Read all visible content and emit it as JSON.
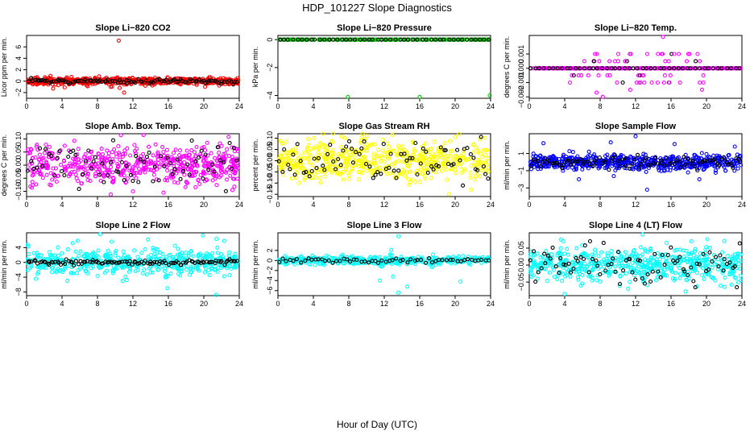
{
  "main_title": "HDP_101227  Slope Diagnostics",
  "xlabel": "Hour of Day (UTC)",
  "chart_data": [
    {
      "type": "scatter",
      "title": "Slope Li−820 CO2",
      "ylabel": "Licor ppm per min.",
      "color": "#ff0000",
      "xlim": [
        0,
        24
      ],
      "ylim": [
        -3,
        8
      ],
      "xticks": [
        0,
        4,
        8,
        12,
        16,
        20,
        24
      ],
      "xticklabels": [
        "0",
        "4",
        "8",
        "12",
        "16",
        "20",
        "24"
      ],
      "yticks": [
        -2,
        0,
        2,
        4,
        6
      ],
      "yticklabels": [
        "−2",
        "0",
        "2",
        "4",
        "6"
      ],
      "n_points": 600,
      "center": 0,
      "spread": 0.28,
      "black_n": 100,
      "black_spread": 0.2,
      "outliers": [
        [
          10.4,
          7.1
        ],
        [
          10.5,
          -1.2
        ],
        [
          11.0,
          -2.0
        ],
        [
          3.0,
          -1.3
        ],
        [
          4.3,
          -1.1
        ],
        [
          9.5,
          -1.0
        ],
        [
          13.4,
          -0.8
        ],
        [
          6.9,
          -0.9
        ]
      ]
    },
    {
      "type": "scatter",
      "title": "Slope Li−820 Pressure",
      "ylabel": "kPa per min.",
      "color": "#00cc00",
      "xlim": [
        0,
        24
      ],
      "ylim": [
        -4.2,
        0.3
      ],
      "xticks": [
        0,
        4,
        8,
        12,
        16,
        20,
        24
      ],
      "xticklabels": [
        "0",
        "4",
        "8",
        "12",
        "16",
        "20",
        "24"
      ],
      "yticks": [
        -4,
        -2,
        0
      ],
      "yticklabels": [
        "−4",
        "−2",
        "0"
      ],
      "n_points": 290,
      "center": 0,
      "spread": 0,
      "black_n": 48,
      "black_spread": 0,
      "outliers": [
        [
          7.9,
          -4.1
        ],
        [
          16.0,
          -4.1
        ],
        [
          23.9,
          -4.0
        ]
      ]
    },
    {
      "type": "scatter",
      "title": "Slope Li−820 Temp.",
      "ylabel": "degrees C per min.",
      "color": "#ff00ff",
      "xlim": [
        0,
        24
      ],
      "ylim": [
        -0.0021,
        0.0023
      ],
      "xticks": [
        0,
        4,
        8,
        12,
        16,
        20,
        24
      ],
      "xticklabels": [
        "0",
        "4",
        "8",
        "12",
        "16",
        "20",
        "24"
      ],
      "yticks": [
        -0.002,
        -0.001,
        0,
        0.001
      ],
      "yticklabels": [
        "−0.002",
        "−0.001",
        "0.000",
        "0.001"
      ],
      "n_points": 290,
      "center": 0,
      "spread": 0,
      "black_n": 48,
      "black_spread": 0,
      "levels": [
        0.001,
        0.0005,
        -0.0005,
        -0.001
      ],
      "level_xrange": [
        4.5,
        20
      ],
      "level_n": 60,
      "outliers": [
        [
          15.1,
          0.0022
        ],
        [
          11.4,
          -0.0015
        ],
        [
          8.3,
          -0.002
        ],
        [
          7.6,
          -0.0017
        ],
        [
          19.5,
          -0.0015
        ]
      ]
    },
    {
      "type": "scatter",
      "title": "Slope Amb. Box Temp.",
      "ylabel": "degrees C per min.",
      "color": "#ff00ff",
      "xlim": [
        0,
        24
      ],
      "ylim": [
        -0.12,
        0.12
      ],
      "xticks": [
        0,
        4,
        8,
        12,
        16,
        20,
        24
      ],
      "xticklabels": [
        "0",
        "4",
        "8",
        "12",
        "16",
        "20",
        "24"
      ],
      "yticks": [
        -0.1,
        -0.05,
        0,
        0.05,
        0.1
      ],
      "yticklabels": [
        "−0.10",
        "−0.05",
        "0.00",
        "0.05",
        "0.10"
      ],
      "n_points": 560,
      "center": 0,
      "spread": 0.035,
      "black_n": 75,
      "black_spread": 0.04,
      "outliers": [
        [
          13.2,
          0.115
        ],
        [
          9.5,
          -0.112
        ],
        [
          12.0,
          -0.1
        ],
        [
          22.8,
          0.108
        ]
      ]
    },
    {
      "type": "scatter",
      "title": "Slope Gas Stream RH",
      "ylabel": "percent per min.",
      "color": "#ffff00",
      "xlim": [
        0,
        24
      ],
      "ylim": [
        -0.16,
        0.12
      ],
      "xticks": [
        0,
        4,
        8,
        12,
        16,
        20,
        24
      ],
      "xticklabels": [
        "0",
        "4",
        "8",
        "12",
        "16",
        "20",
        "24"
      ],
      "yticks": [
        -0.15,
        -0.1,
        -0.05,
        0,
        0.05,
        0.1
      ],
      "yticklabels": [
        "−0.15",
        "−0.10",
        "−0.05",
        "0.00",
        "0.05",
        "0.10"
      ],
      "n_points": 560,
      "center": 0,
      "spread": 0.045,
      "black_n": 80,
      "black_spread": 0.045,
      "outliers": [
        [
          19.3,
          -0.15
        ],
        [
          21.8,
          -0.13
        ],
        [
          12.9,
          0.115
        ]
      ]
    },
    {
      "type": "scatter",
      "title": "Slope Sample Flow",
      "ylabel": "ml/min per min.",
      "color": "#0000ff",
      "xlim": [
        0,
        24
      ],
      "ylim": [
        -4,
        3.3
      ],
      "xticks": [
        0,
        4,
        8,
        12,
        16,
        20,
        24
      ],
      "xticklabels": [
        "0",
        "4",
        "8",
        "12",
        "16",
        "20",
        "24"
      ],
      "yticks": [
        -3,
        -1,
        1
      ],
      "yticklabels": [
        "−3",
        "−1",
        "1"
      ],
      "n_points": 600,
      "center": 0,
      "spread": 0.45,
      "black_n": 90,
      "black_spread": 0.35,
      "outliers": [
        [
          1.6,
          2.2
        ],
        [
          9.2,
          2.3
        ],
        [
          12.0,
          3.0
        ],
        [
          5.6,
          -2.0
        ],
        [
          13.3,
          -3.2
        ],
        [
          19.2,
          -2.0
        ],
        [
          23.2,
          1.8
        ],
        [
          16.4,
          2.1
        ]
      ]
    },
    {
      "type": "scatter",
      "title": "Slope Line 2 Flow",
      "ylabel": "ml/min per min.",
      "color": "#00ffff",
      "xlim": [
        0,
        24
      ],
      "ylim": [
        -9,
        8
      ],
      "xticks": [
        0,
        4,
        8,
        12,
        16,
        20,
        24
      ],
      "xticklabels": [
        "0",
        "4",
        "8",
        "12",
        "16",
        "20",
        "24"
      ],
      "yticks": [
        -8,
        -4,
        0,
        4
      ],
      "yticklabels": [
        "−8",
        "−4",
        "0",
        "4"
      ],
      "n_points": 480,
      "center": 0,
      "spread": 1.6,
      "black_n": 110,
      "black_spread": 0.3,
      "outliers": [
        [
          8.3,
          7.6
        ],
        [
          5.2,
          5.2
        ],
        [
          9.6,
          5.6
        ],
        [
          13.7,
          6.2
        ],
        [
          15.9,
          -7.0
        ],
        [
          4.6,
          -5.0
        ],
        [
          11.3,
          -4.8
        ],
        [
          21.4,
          -8.8
        ],
        [
          22.3,
          5.8
        ],
        [
          19.9,
          7.3
        ]
      ]
    },
    {
      "type": "scatter",
      "title": "Slope Line 3 Flow",
      "ylabel": "ml/min per min.",
      "color": "#00ffff",
      "xlim": [
        0,
        24
      ],
      "ylim": [
        -7,
        5.5
      ],
      "xticks": [
        0,
        4,
        8,
        12,
        16,
        20,
        24
      ],
      "xticklabels": [
        "0",
        "4",
        "8",
        "12",
        "16",
        "20",
        "24"
      ],
      "yticks": [
        -6,
        -4,
        -2,
        0,
        2
      ],
      "yticklabels": [
        "−6",
        "−4",
        "−2",
        "0",
        "2"
      ],
      "n_points": 420,
      "center": 0,
      "spread": 0.4,
      "black_n": 60,
      "black_spread": 0.25,
      "outliers": [
        [
          13.6,
          4.8
        ],
        [
          11.5,
          -4.0
        ],
        [
          13.0,
          -3.2
        ],
        [
          13.6,
          -6.4
        ],
        [
          14.6,
          -5.2
        ],
        [
          20.6,
          -4.2
        ],
        [
          12.8,
          2.1
        ]
      ]
    },
    {
      "type": "scatter",
      "title": "Slope Line 4 (LT) Flow",
      "ylabel": "ml/min per min.",
      "color": "#00ffff",
      "xlim": [
        0,
        24
      ],
      "ylim": [
        -0.09,
        0.095
      ],
      "xticks": [
        0,
        4,
        8,
        12,
        16,
        20,
        24
      ],
      "xticklabels": [
        "0",
        "4",
        "8",
        "12",
        "16",
        "20",
        "24"
      ],
      "yticks": [
        -0.05,
        0,
        0.05
      ],
      "yticklabels": [
        "−0.05",
        "0.00",
        "0.05"
      ],
      "n_points": 560,
      "center": 0,
      "spread": 0.025,
      "black_n": 85,
      "black_spread": 0.03,
      "outliers": [
        [
          4.0,
          -0.085
        ],
        [
          3.6,
          0.075
        ],
        [
          12.8,
          0.09
        ],
        [
          15.5,
          0.065
        ],
        [
          18.3,
          0.07
        ]
      ]
    }
  ]
}
